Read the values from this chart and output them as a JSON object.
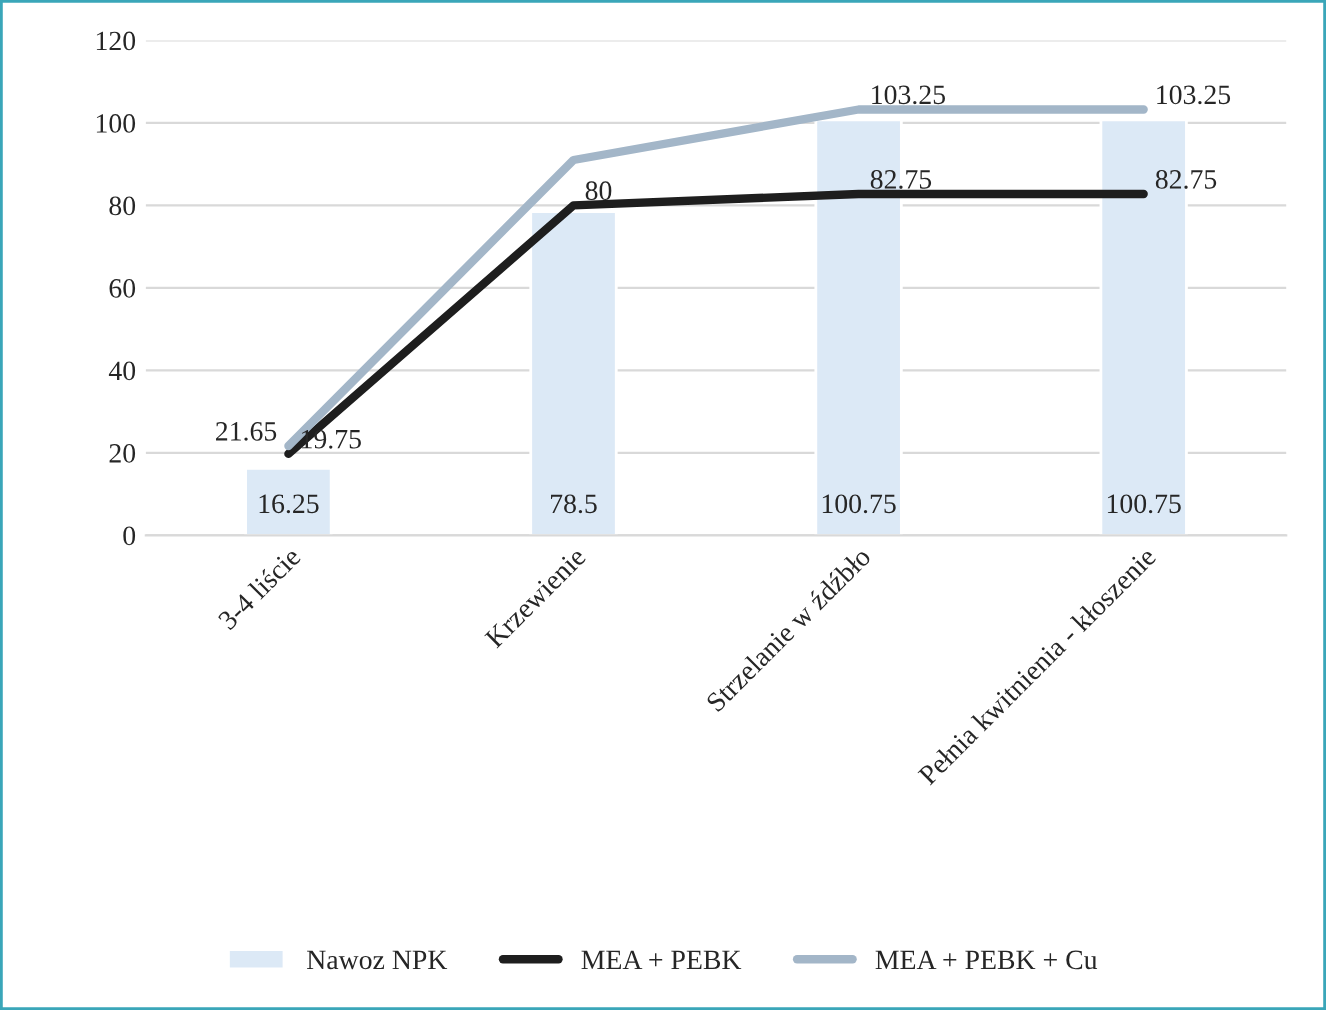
{
  "chart_data": {
    "type": "bar",
    "categories": [
      "3-4 liście",
      "Krzewienie",
      "Strzelanie w źdźbło",
      "Pełnia kwitnienia - kłoszenie"
    ],
    "series": [
      {
        "name": "Nawoz NPK",
        "color": "#dce9f6",
        "values": [
          16.25,
          78.5,
          100.75,
          100.75
        ],
        "value_labels": [
          "16.25",
          "78.5",
          "100.75",
          "100.75"
        ]
      },
      {
        "name": "MEA + PEBK",
        "type": "line",
        "color": "#1e1e1e",
        "values": [
          19.75,
          80,
          82.75,
          82.75
        ],
        "value_labels": [
          "19.75",
          "80",
          "82.75",
          "82.75"
        ]
      },
      {
        "name": "MEA + PEBK + Cu",
        "type": "line",
        "color": "#a3b6c8",
        "values": [
          21.65,
          91,
          103.25,
          103.25
        ],
        "value_labels": [
          "21.65",
          null,
          "103.25",
          "103.25"
        ]
      }
    ],
    "ylim": [
      0,
      120
    ],
    "yticks": [
      0,
      20,
      40,
      60,
      80,
      100,
      120
    ],
    "grid": "y",
    "legend": "bottom",
    "marker": "none",
    "line_style": "solid"
  }
}
